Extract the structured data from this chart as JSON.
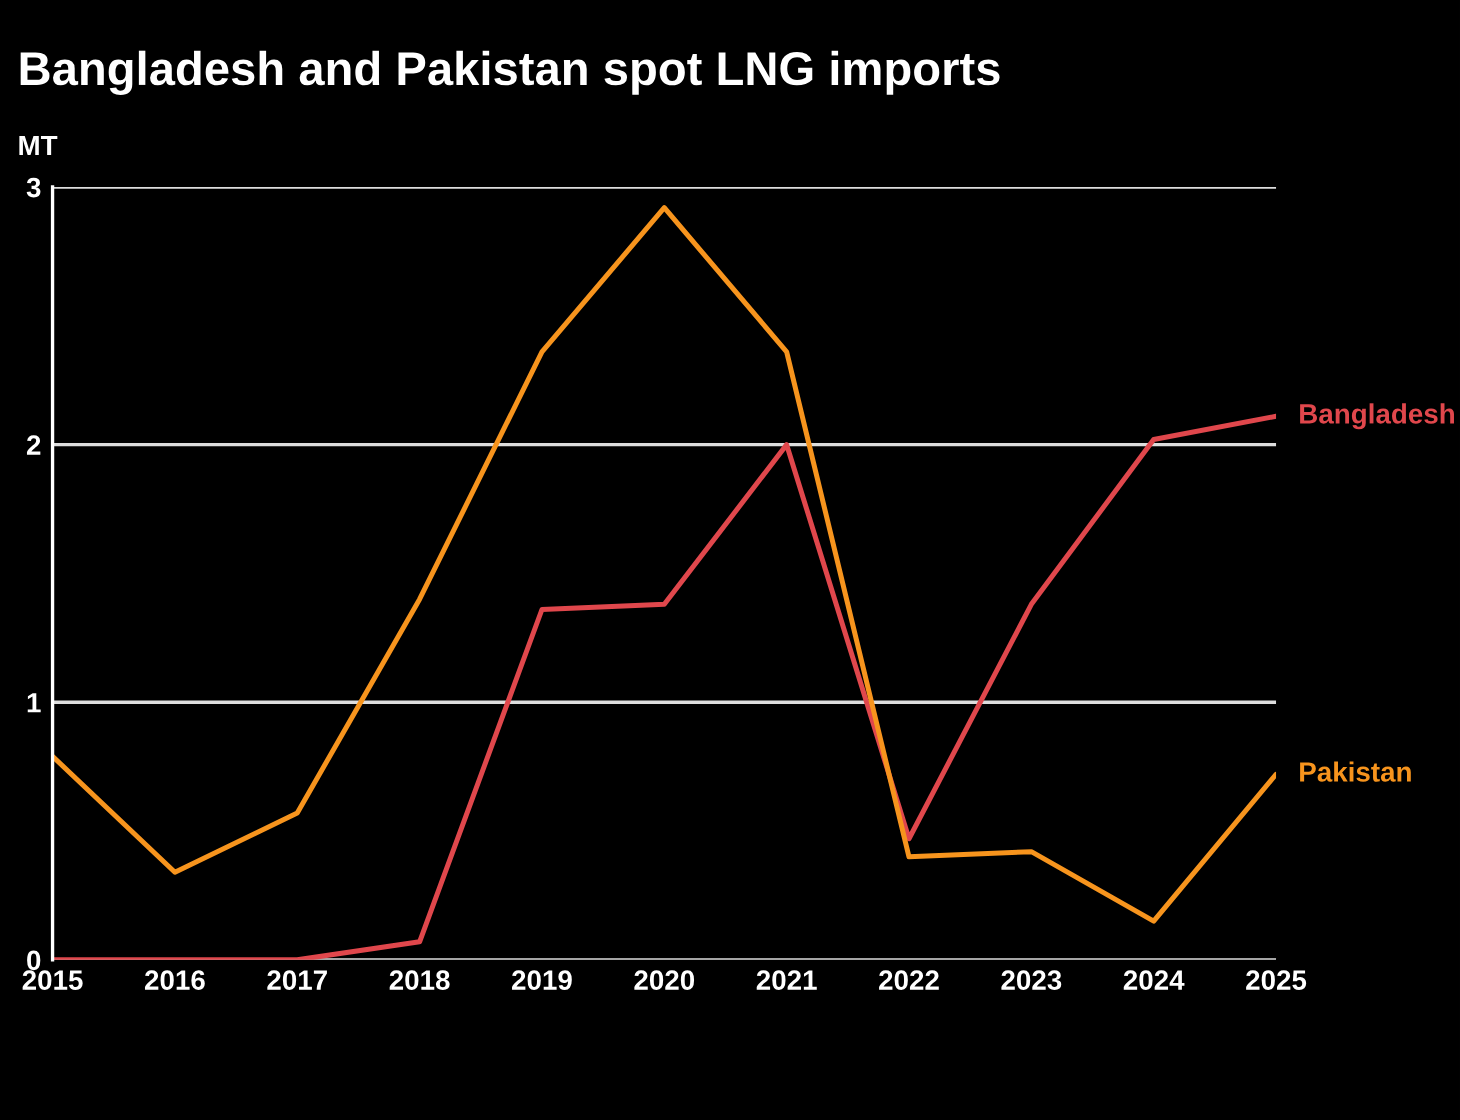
{
  "chart_data": {
    "type": "line",
    "title": "Bangladesh and Pakistan spot LNG imports",
    "ylabel": "MT",
    "x": [
      2015,
      2016,
      2017,
      2018,
      2019,
      2020,
      2021,
      2022,
      2023,
      2024,
      2025
    ],
    "series": [
      {
        "name": "Bangladesh",
        "color": "#e0474c",
        "values": [
          0,
          0,
          0,
          0.07,
          1.36,
          1.38,
          2.0,
          0.47,
          1.38,
          2.02,
          2.11
        ]
      },
      {
        "name": "Pakistan",
        "color": "#f7941d",
        "values": [
          0.79,
          0.34,
          0.57,
          1.4,
          2.36,
          2.92,
          2.36,
          0.4,
          0.42,
          0.15,
          0.72
        ]
      }
    ],
    "xlim": [
      2015,
      2025
    ],
    "xticks": [
      2015,
      2016,
      2017,
      2018,
      2019,
      2020,
      2021,
      2022,
      2023,
      2024,
      2025
    ],
    "ylim": [
      0,
      3
    ],
    "yticks": [
      0,
      1,
      2,
      3
    ],
    "grid": "y",
    "legend": false,
    "marker": "none",
    "line_style": "solid"
  }
}
